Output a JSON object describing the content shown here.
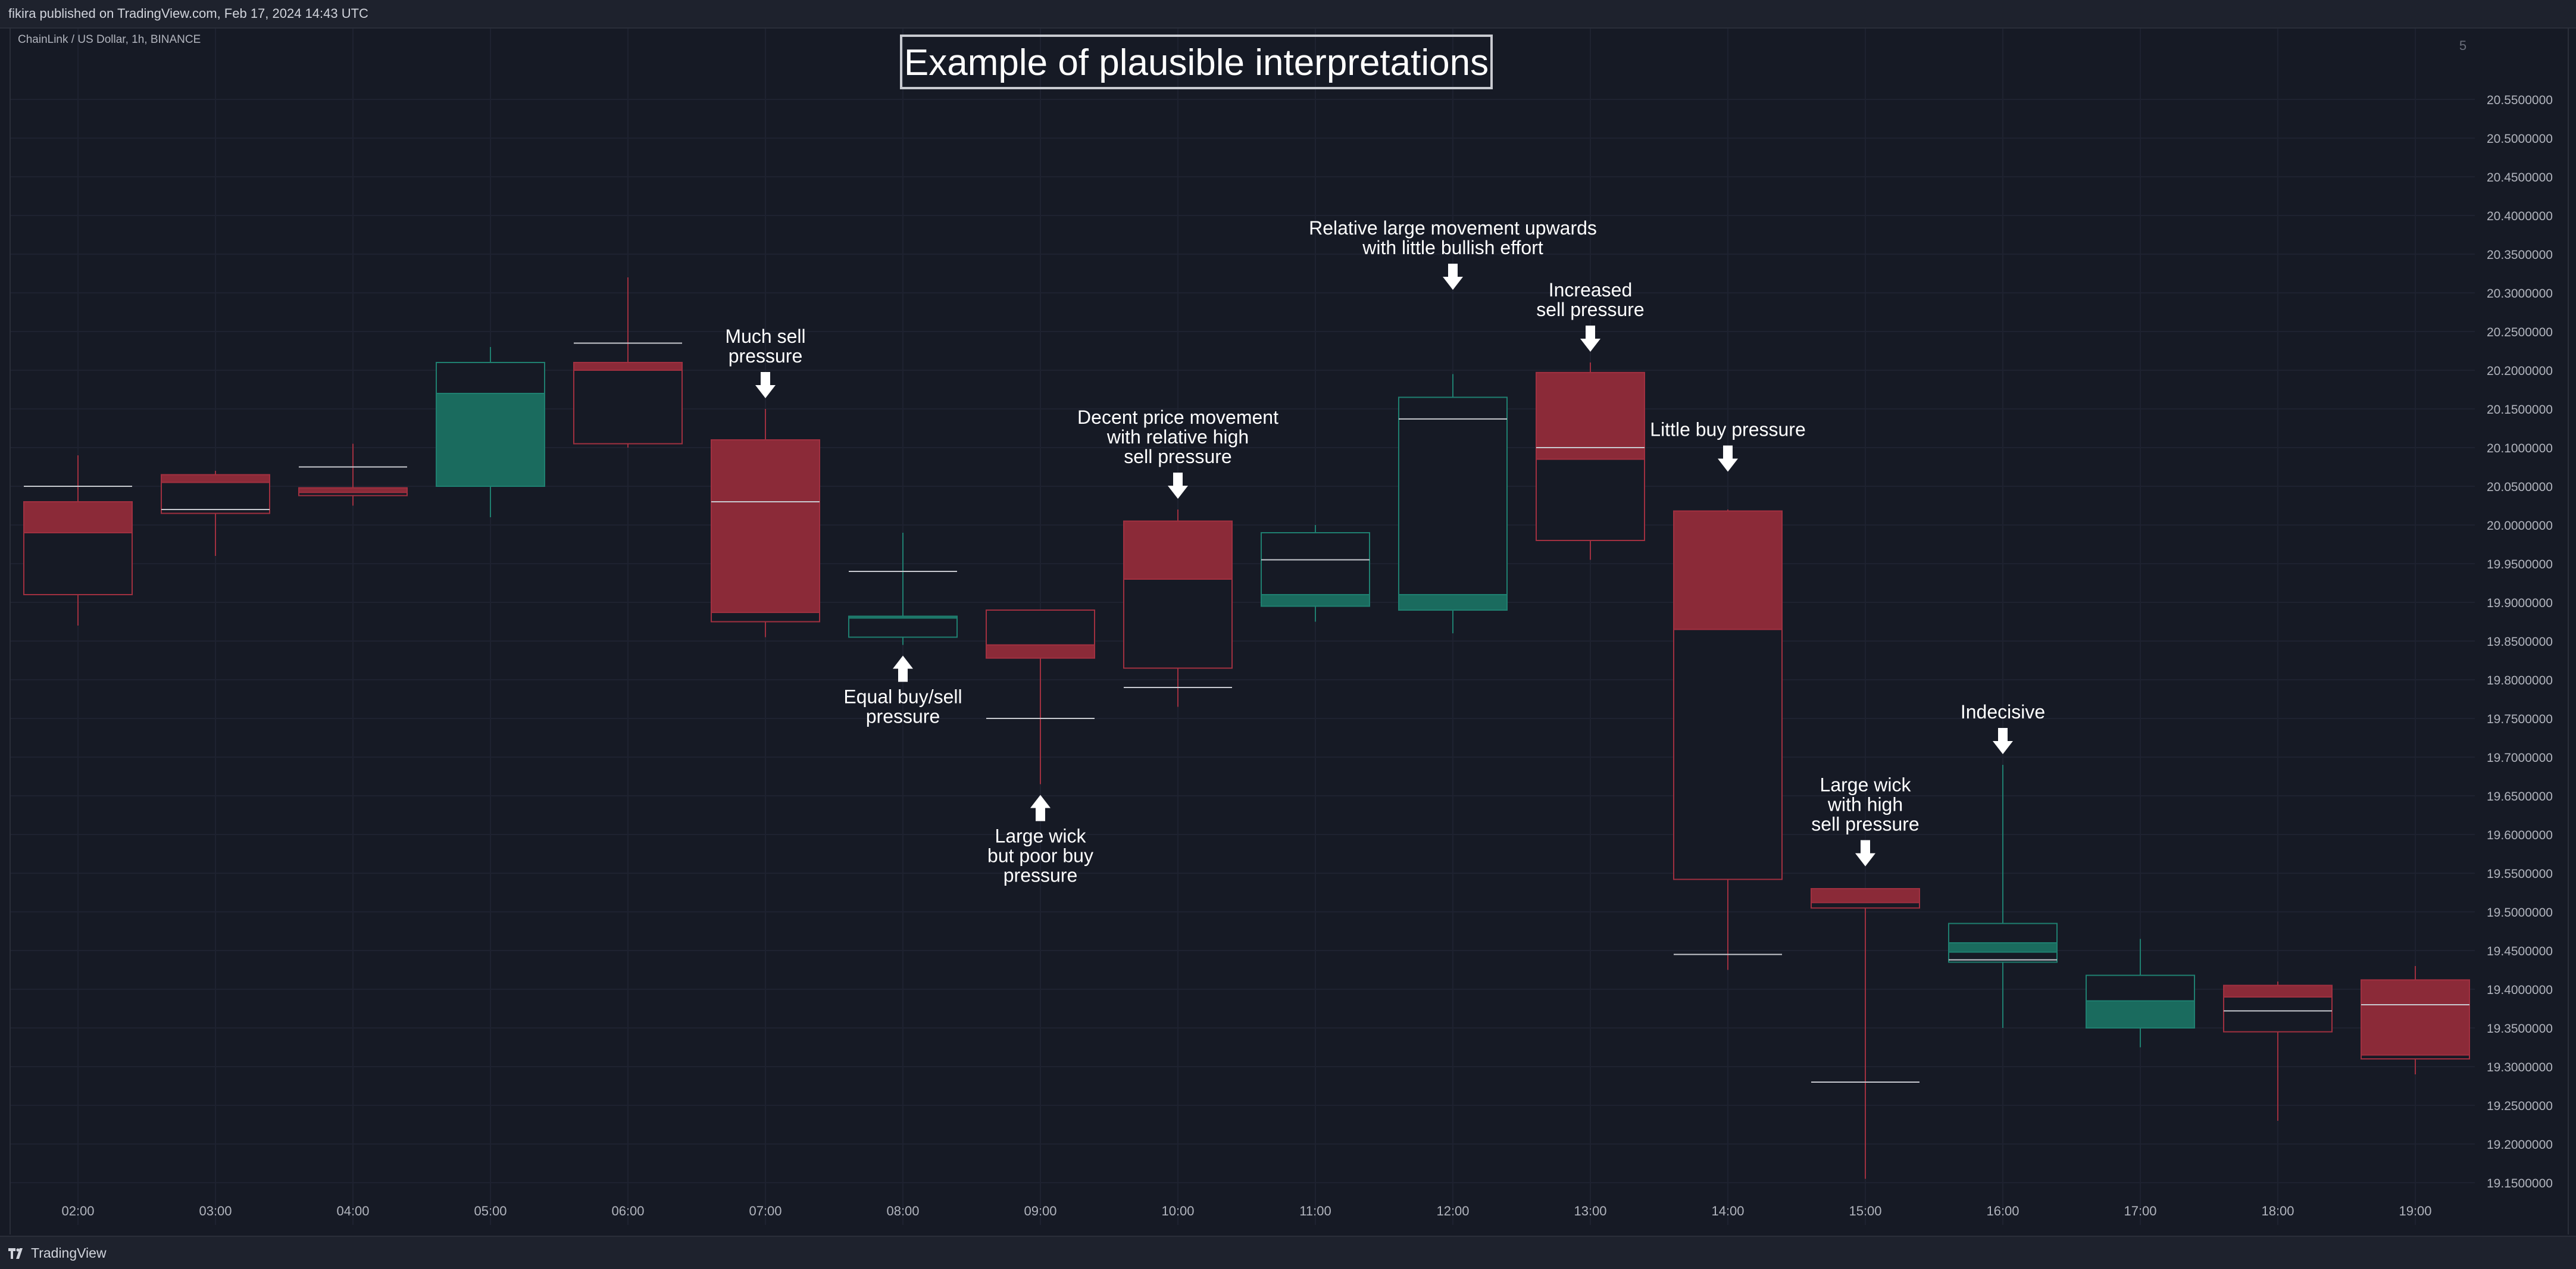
{
  "header": {
    "published": "fikira published on TradingView.com, Feb 17, 2024 14:43 UTC"
  },
  "footer": {
    "brand": "TradingView"
  },
  "colors": {
    "bull": "#1a6b5e",
    "bear": "#8b2a38",
    "bull_line": "#1f7f70",
    "bear_line": "#a03040",
    "text": "#ffffff",
    "axis_text": "#b2b5be"
  },
  "chart_data": {
    "type": "candlestick",
    "symbol_label": "ChainLink / US Dollar, 1h, BINANCE",
    "corner_label": "5",
    "title": "Example of plausible interpretations",
    "ylim": [
      19.14,
      20.58
    ],
    "y_ticks": [
      20.55,
      20.5,
      20.45,
      20.4,
      20.35,
      20.3,
      20.25,
      20.2,
      20.15,
      20.1,
      20.05,
      20.0,
      19.95,
      19.9,
      19.85,
      19.8,
      19.75,
      19.7,
      19.65,
      19.6,
      19.55,
      19.5,
      19.45,
      19.4,
      19.35,
      19.3,
      19.25,
      19.2,
      19.15
    ],
    "categories": [
      "02:00",
      "03:00",
      "04:00",
      "05:00",
      "06:00",
      "07:00",
      "08:00",
      "09:00",
      "10:00",
      "11:00",
      "12:00",
      "13:00",
      "14:00",
      "15:00",
      "16:00",
      "17:00",
      "18:00",
      "19:00"
    ],
    "candles": [
      {
        "dir": "bear",
        "high": 20.09,
        "low": 19.87,
        "range_top": 20.03,
        "range_bot": 19.91,
        "body_top": 20.03,
        "body_bot": 19.99,
        "tick": 20.05
      },
      {
        "dir": "bear",
        "high": 20.07,
        "low": 19.96,
        "range_top": 20.065,
        "range_bot": 20.015,
        "body_top": 20.065,
        "body_bot": 20.055,
        "tick": 20.02
      },
      {
        "dir": "bear",
        "high": 20.105,
        "low": 20.025,
        "range_top": 20.048,
        "range_bot": 20.038,
        "body_top": 20.048,
        "body_bot": 20.042,
        "tick": 20.075
      },
      {
        "dir": "bull",
        "high": 20.23,
        "low": 20.01,
        "range_top": 20.21,
        "range_bot": 20.05,
        "body_top": 20.17,
        "body_bot": 20.05,
        "tick": null
      },
      {
        "dir": "bear",
        "high": 20.32,
        "low": 20.1,
        "range_top": 20.21,
        "range_bot": 20.105,
        "body_top": 20.21,
        "body_bot": 20.2,
        "tick": 20.235
      },
      {
        "dir": "bear",
        "high": 20.15,
        "low": 19.855,
        "range_top": 20.11,
        "range_bot": 19.875,
        "body_top": 20.11,
        "body_bot": 19.887,
        "tick": 20.03
      },
      {
        "dir": "bull",
        "high": 19.99,
        "low": 19.845,
        "range_top": 19.882,
        "range_bot": 19.855,
        "body_top": 19.882,
        "body_bot": 19.882,
        "tick": 19.94
      },
      {
        "dir": "bear",
        "high": 19.865,
        "low": 19.665,
        "range_top": 19.89,
        "range_bot": 19.828,
        "body_top": 19.845,
        "body_bot": 19.828,
        "tick": 19.75
      },
      {
        "dir": "bear",
        "high": 20.02,
        "low": 19.765,
        "range_top": 20.005,
        "range_bot": 19.815,
        "body_top": 20.005,
        "body_bot": 19.93,
        "tick": 19.79
      },
      {
        "dir": "bull",
        "high": 20.0,
        "low": 19.875,
        "range_top": 19.99,
        "range_bot": 19.895,
        "body_top": 19.91,
        "body_bot": 19.895,
        "tick": 19.955
      },
      {
        "dir": "bull",
        "high": 20.195,
        "low": 19.86,
        "range_top": 20.165,
        "range_bot": 19.89,
        "body_top": 19.91,
        "body_bot": 19.89,
        "tick": 20.137
      },
      {
        "dir": "bear",
        "high": 20.21,
        "low": 19.955,
        "range_top": 20.197,
        "range_bot": 19.98,
        "body_top": 20.197,
        "body_bot": 20.085,
        "tick": 20.1
      },
      {
        "dir": "bear",
        "high": 20.02,
        "low": 19.425,
        "range_top": 20.018,
        "range_bot": 19.542,
        "body_top": 20.018,
        "body_bot": 19.865,
        "tick": 19.445
      },
      {
        "dir": "bear",
        "high": 19.51,
        "low": 19.155,
        "range_top": 19.53,
        "range_bot": 19.505,
        "body_top": 19.53,
        "body_bot": 19.512,
        "tick": 19.28
      },
      {
        "dir": "bull",
        "high": 19.69,
        "low": 19.35,
        "range_top": 19.485,
        "range_bot": 19.435,
        "body_top": 19.46,
        "body_bot": 19.448,
        "tick": 19.438
      },
      {
        "dir": "bull",
        "high": 19.465,
        "low": 19.325,
        "range_top": 19.418,
        "range_bot": 19.35,
        "body_top": 19.385,
        "body_bot": 19.35,
        "tick": null
      },
      {
        "dir": "bear",
        "high": 19.41,
        "low": 19.23,
        "range_top": 19.405,
        "range_bot": 19.345,
        "body_top": 19.405,
        "body_bot": 19.39,
        "tick": 19.372
      },
      {
        "dir": "bear",
        "high": 19.43,
        "low": 19.29,
        "range_top": 19.412,
        "range_bot": 19.31,
        "body_top": 19.412,
        "body_bot": 19.315,
        "tick": 19.38
      }
    ],
    "annotations": [
      {
        "index": 5,
        "lines": [
          "Much sell",
          "pressure"
        ],
        "arrow": "down",
        "anchor": 20.15
      },
      {
        "index": 6,
        "lines": [
          "Equal buy/sell",
          "pressure"
        ],
        "arrow": "up",
        "anchor": 19.845
      },
      {
        "index": 7,
        "lines": [
          "Large wick",
          "but poor buy",
          "pressure"
        ],
        "arrow": "up",
        "anchor": 19.665
      },
      {
        "index": 8,
        "lines": [
          "Decent price movement",
          "with relative high",
          "sell pressure"
        ],
        "arrow": "down",
        "anchor": 20.02
      },
      {
        "index": 10,
        "lines": [
          "Relative large movement upwards",
          "with little bullish effort"
        ],
        "arrow": "down",
        "anchor": 20.29
      },
      {
        "index": 11,
        "lines": [
          "Increased",
          "sell pressure"
        ],
        "arrow": "down",
        "anchor": 20.21
      },
      {
        "index": 12,
        "lines": [
          "Little buy pressure"
        ],
        "arrow": "down",
        "anchor": 20.055
      },
      {
        "index": 13,
        "lines": [
          "Large wick",
          "with high",
          "sell pressure"
        ],
        "arrow": "down",
        "anchor": 19.545
      },
      {
        "index": 14,
        "lines": [
          "Indecisive"
        ],
        "arrow": "down",
        "anchor": 19.69
      }
    ]
  }
}
